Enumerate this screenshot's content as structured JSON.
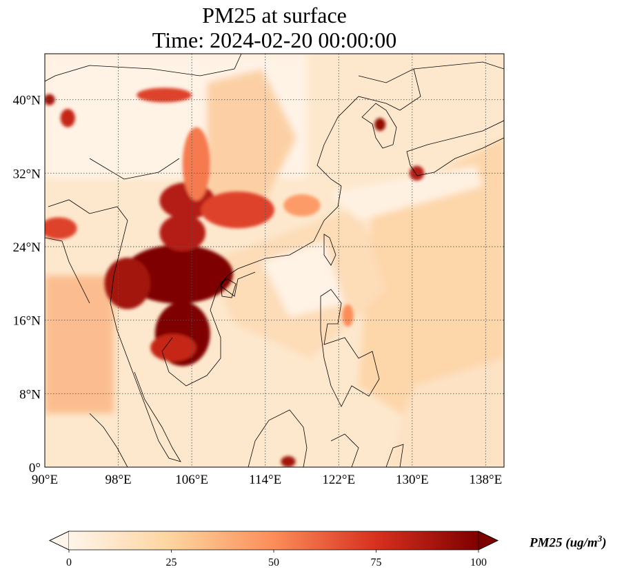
{
  "title": {
    "line1": "PM25 at surface",
    "line2": "Time: 2024-02-20 00:00:00"
  },
  "map": {
    "region": "East and Southeast Asia",
    "lon_range": [
      90,
      140
    ],
    "lat_range": [
      0,
      45
    ],
    "lon_ticks": [
      {
        "value": 90,
        "label": "90°E"
      },
      {
        "value": 98,
        "label": "98°E"
      },
      {
        "value": 106,
        "label": "106°E"
      },
      {
        "value": 114,
        "label": "114°E"
      },
      {
        "value": 122,
        "label": "122°E"
      },
      {
        "value": 130,
        "label": "130°E"
      },
      {
        "value": 138,
        "label": "138°E"
      }
    ],
    "lat_ticks": [
      {
        "value": 0,
        "label": "0°"
      },
      {
        "value": 8,
        "label": "8°N"
      },
      {
        "value": 16,
        "label": "16°N"
      },
      {
        "value": 24,
        "label": "24°N"
      },
      {
        "value": 32,
        "label": "32°N"
      },
      {
        "value": 40,
        "label": "40°N"
      }
    ],
    "gridlines": true,
    "coastlines": true,
    "colormap": [
      "#fff5eb",
      "#fdd49e",
      "#fc8d59",
      "#d7301f",
      "#7f0000"
    ],
    "hotspots": [
      {
        "lon": 104.5,
        "lat": 21.0,
        "rx": 6.0,
        "ry": 3.2,
        "value": 100
      },
      {
        "lon": 105.0,
        "lat": 14.5,
        "rx": 3.0,
        "ry": 3.5,
        "value": 100
      },
      {
        "lon": 99.0,
        "lat": 20.0,
        "rx": 2.5,
        "ry": 2.8,
        "value": 90
      },
      {
        "lon": 105.5,
        "lat": 29.0,
        "rx": 3.0,
        "ry": 2.0,
        "value": 85
      },
      {
        "lon": 111.0,
        "lat": 28.0,
        "rx": 4.0,
        "ry": 2.0,
        "value": 70
      },
      {
        "lon": 105.0,
        "lat": 25.5,
        "rx": 2.5,
        "ry": 2.0,
        "value": 85
      },
      {
        "lon": 106.5,
        "lat": 33.0,
        "rx": 1.5,
        "ry": 4.0,
        "value": 55
      },
      {
        "lon": 103.0,
        "lat": 40.5,
        "rx": 3.0,
        "ry": 0.8,
        "value": 70
      },
      {
        "lon": 92.5,
        "lat": 38.0,
        "rx": 0.8,
        "ry": 1.0,
        "value": 80
      },
      {
        "lon": 90.5,
        "lat": 40.0,
        "rx": 0.6,
        "ry": 0.6,
        "value": 90
      },
      {
        "lon": 91.5,
        "lat": 26.0,
        "rx": 2.0,
        "ry": 1.2,
        "value": 70
      },
      {
        "lon": 126.5,
        "lat": 37.3,
        "rx": 0.6,
        "ry": 0.7,
        "value": 95
      },
      {
        "lon": 130.5,
        "lat": 32.0,
        "rx": 0.8,
        "ry": 0.8,
        "value": 85
      },
      {
        "lon": 104.0,
        "lat": 13.0,
        "rx": 2.5,
        "ry": 1.5,
        "value": 80
      },
      {
        "lon": 116.5,
        "lat": 0.6,
        "rx": 0.8,
        "ry": 0.6,
        "value": 90
      },
      {
        "lon": 118.0,
        "lat": 28.5,
        "rx": 2.0,
        "ry": 1.2,
        "value": 45
      },
      {
        "lon": 123.0,
        "lat": 16.5,
        "rx": 0.6,
        "ry": 1.2,
        "value": 50
      }
    ]
  },
  "colorbar": {
    "min": 0,
    "max": 100,
    "ticks": [
      {
        "value": 0,
        "label": "0"
      },
      {
        "value": 25,
        "label": "25"
      },
      {
        "value": 50,
        "label": "50"
      },
      {
        "value": 75,
        "label": "75"
      },
      {
        "value": 100,
        "label": "100"
      }
    ],
    "label": "PM25 (ug/m",
    "label_sup": "3",
    "label_close": ")",
    "extend": "both"
  }
}
